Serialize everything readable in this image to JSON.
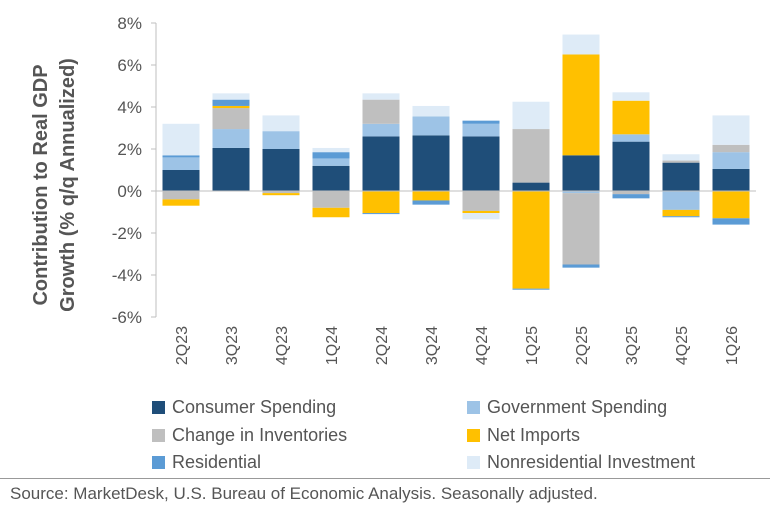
{
  "chart_data": {
    "type": "bar",
    "stacked": true,
    "ylabel_line1": "Contribution to Real GDP",
    "ylabel_line2": "Growth (% q/q Annualized)",
    "ylim": [
      -6,
      8
    ],
    "yticks": [
      8,
      6,
      4,
      2,
      0,
      -2,
      -4,
      -6
    ],
    "ytick_labels": [
      "8%",
      "6%",
      "4%",
      "2%",
      "0%",
      "-2%",
      "-4%",
      "-6%"
    ],
    "categories": [
      "2Q23",
      "3Q23",
      "4Q23",
      "1Q24",
      "2Q24",
      "3Q24",
      "4Q24",
      "1Q25",
      "2Q25",
      "3Q25",
      "4Q25",
      "1Q26"
    ],
    "legend_position": "bottom",
    "grid": false,
    "series": [
      {
        "name": "Consumer Spending",
        "color": "#1f4e79",
        "values": [
          1.0,
          2.05,
          2.0,
          1.2,
          2.6,
          2.65,
          2.6,
          0.4,
          1.7,
          2.35,
          1.35,
          1.05
        ]
      },
      {
        "name": "Government Spending",
        "color": "#9dc3e6",
        "values": [
          0.6,
          0.9,
          0.85,
          0.35,
          0.6,
          0.9,
          0.6,
          0.0,
          -0.1,
          0.35,
          -0.9,
          0.8
        ]
      },
      {
        "name": "Change in Inventories",
        "color": "#bfbfbf",
        "values": [
          -0.4,
          1.0,
          -0.1,
          -0.8,
          1.15,
          0.0,
          -0.95,
          2.55,
          -3.4,
          -0.15,
          0.1,
          0.35
        ]
      },
      {
        "name": "Net Imports",
        "color": "#ffc000",
        "values": [
          -0.3,
          0.1,
          -0.1,
          -0.45,
          -1.05,
          -0.45,
          -0.1,
          -4.65,
          4.8,
          1.6,
          -0.3,
          -1.3
        ]
      },
      {
        "name": "Residential",
        "color": "#5b9bd5",
        "values": [
          0.1,
          0.3,
          0.0,
          0.3,
          -0.05,
          -0.2,
          0.15,
          -0.05,
          -0.15,
          -0.2,
          -0.05,
          -0.3
        ]
      },
      {
        "name": "Nonresidential Investment",
        "color": "#deebf7",
        "values": [
          1.5,
          0.3,
          0.75,
          0.2,
          0.3,
          0.5,
          -0.3,
          1.3,
          0.95,
          0.4,
          0.3,
          1.4
        ]
      }
    ]
  },
  "source": "Source: MarketDesk, U.S. Bureau of Economic Analysis. Seasonally adjusted."
}
